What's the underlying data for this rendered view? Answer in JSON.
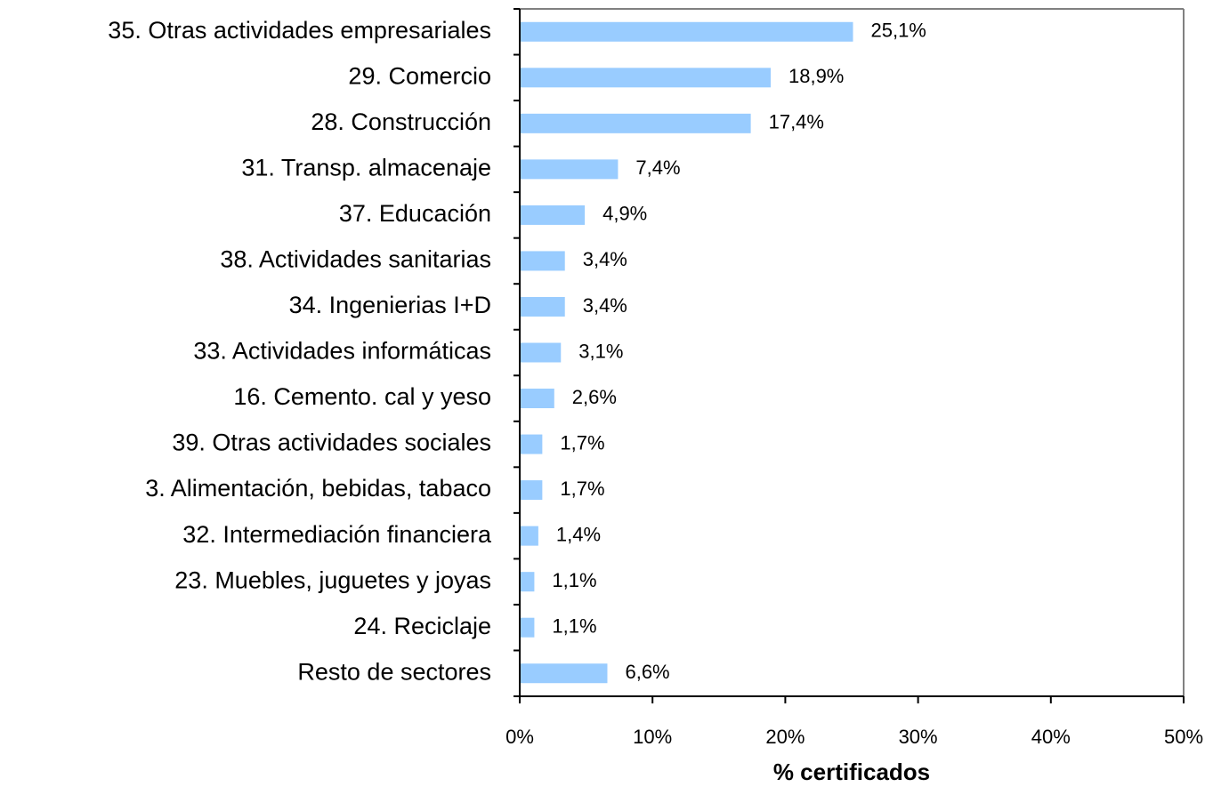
{
  "chart_data": {
    "type": "bar",
    "orientation": "horizontal",
    "categories": [
      "35. Otras actividades empresariales",
      "29. Comercio",
      "28. Construcción",
      "31. Transp. almacenaje",
      "37. Educación",
      "38. Actividades sanitarias",
      "34. Ingenierias I+D",
      "33. Actividades informáticas",
      "16. Cemento. cal y yeso",
      "39. Otras actividades sociales",
      "3. Alimentación, bebidas, tabaco",
      "32. Intermediación financiera",
      "23. Muebles, juguetes y joyas",
      "24. Reciclaje",
      "Resto de sectores"
    ],
    "values": [
      25.1,
      18.9,
      17.4,
      7.4,
      4.9,
      3.4,
      3.4,
      3.1,
      2.6,
      1.7,
      1.7,
      1.4,
      1.1,
      1.1,
      6.6
    ],
    "value_labels": [
      "25,1%",
      "18,9%",
      "17,4%",
      "7,4%",
      "4,9%",
      "3,4%",
      "3,4%",
      "3,1%",
      "2,6%",
      "1,7%",
      "1,7%",
      "1,4%",
      "1,1%",
      "1,1%",
      "6,6%"
    ],
    "color": "#99ccff",
    "xlim": [
      0,
      50
    ],
    "xticks": [
      {
        "value": 0,
        "label": "0%"
      },
      {
        "value": 10,
        "label": "10%"
      },
      {
        "value": 20,
        "label": "20%"
      },
      {
        "value": 30,
        "label": "30%"
      },
      {
        "value": 40,
        "label": "40%"
      },
      {
        "value": 50,
        "label": "50%"
      }
    ],
    "xlabel": "% certificados"
  }
}
